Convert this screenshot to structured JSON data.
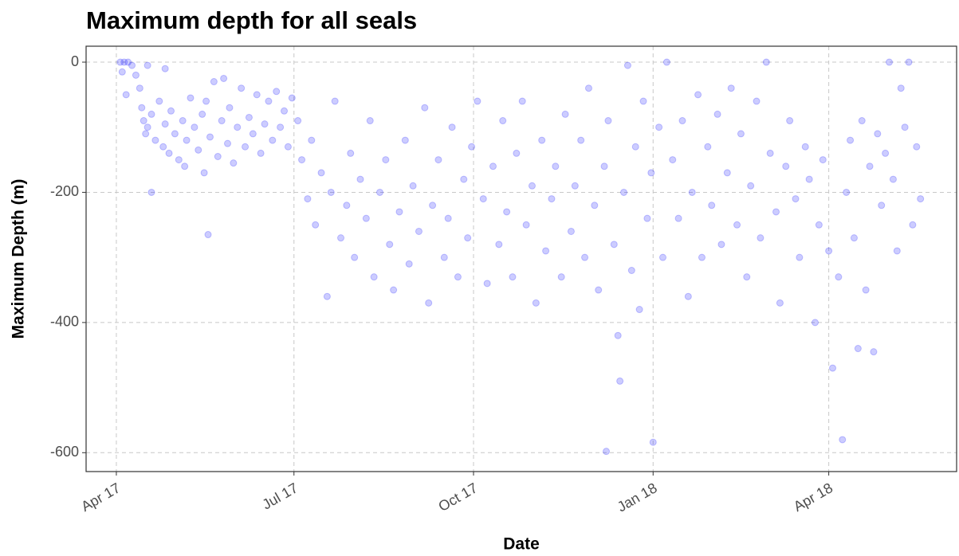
{
  "chart_data": {
    "type": "scatter",
    "title": "Maximum depth for all seals",
    "x_label": "Date",
    "y_label": "Maximum Depth (m)",
    "color": "#0000ff",
    "grid": true,
    "xlim": [
      -15.5,
      430.5
    ],
    "ylim": [
      -629,
      24.5
    ],
    "xticks": [
      {
        "value": 0,
        "label": "Apr 17"
      },
      {
        "value": 91,
        "label": "Jul 17"
      },
      {
        "value": 183,
        "label": "Oct 17"
      },
      {
        "value": 275,
        "label": "Jan 18"
      },
      {
        "value": 365,
        "label": "Apr 18"
      }
    ],
    "yticks": [
      0,
      -200,
      -400,
      -600
    ],
    "x": [
      2,
      4,
      6,
      8,
      10,
      3,
      5,
      12,
      13,
      14,
      15,
      16,
      18,
      20,
      22,
      24,
      25,
      27,
      28,
      30,
      32,
      34,
      35,
      36,
      38,
      40,
      42,
      44,
      45,
      46,
      48,
      50,
      52,
      54,
      55,
      57,
      58,
      60,
      62,
      64,
      66,
      68,
      70,
      72,
      74,
      76,
      78,
      80,
      82,
      84,
      86,
      88,
      90,
      18,
      47,
      16,
      25,
      93,
      95,
      98,
      100,
      102,
      105,
      108,
      110,
      112,
      115,
      118,
      120,
      122,
      125,
      128,
      130,
      132,
      135,
      138,
      140,
      142,
      145,
      148,
      150,
      152,
      155,
      158,
      160,
      162,
      165,
      168,
      170,
      172,
      175,
      178,
      180,
      182,
      185,
      188,
      190,
      193,
      196,
      198,
      200,
      203,
      205,
      208,
      210,
      213,
      215,
      218,
      220,
      223,
      225,
      228,
      230,
      233,
      235,
      238,
      240,
      242,
      245,
      247,
      250,
      252,
      255,
      257,
      258,
      260,
      262,
      264,
      266,
      268,
      270,
      272,
      274,
      251,
      275,
      278,
      280,
      282,
      285,
      288,
      290,
      293,
      295,
      298,
      300,
      303,
      305,
      308,
      310,
      313,
      315,
      318,
      320,
      323,
      325,
      328,
      330,
      333,
      335,
      338,
      340,
      343,
      345,
      348,
      350,
      353,
      355,
      358,
      360,
      362,
      365,
      367,
      370,
      372,
      374,
      376,
      378,
      380,
      382,
      384,
      386,
      388,
      390,
      392,
      394,
      396,
      398,
      400,
      402,
      404,
      406,
      408,
      410,
      412
    ],
    "values": [
      0,
      0,
      0,
      -5,
      -20,
      -15,
      -50,
      -40,
      -70,
      -90,
      -110,
      -100,
      -80,
      -120,
      -60,
      -130,
      -95,
      -140,
      -75,
      -110,
      -150,
      -90,
      -160,
      -120,
      -55,
      -100,
      -135,
      -80,
      -170,
      -60,
      -115,
      -30,
      -145,
      -90,
      -25,
      -125,
      -70,
      -155,
      -100,
      -40,
      -130,
      -85,
      -110,
      -50,
      -140,
      -95,
      -60,
      -120,
      -45,
      -100,
      -75,
      -130,
      -55,
      -200,
      -265,
      -5,
      -10,
      -90,
      -150,
      -210,
      -120,
      -250,
      -170,
      -360,
      -200,
      -60,
      -270,
      -220,
      -140,
      -300,
      -180,
      -240,
      -90,
      -330,
      -200,
      -150,
      -280,
      -350,
      -230,
      -120,
      -310,
      -190,
      -260,
      -70,
      -370,
      -220,
      -150,
      -300,
      -240,
      -100,
      -330,
      -180,
      -270,
      -130,
      -60,
      -210,
      -340,
      -160,
      -280,
      -90,
      -230,
      -330,
      -140,
      -60,
      -250,
      -190,
      -370,
      -120,
      -290,
      -210,
      -160,
      -330,
      -80,
      -260,
      -190,
      -120,
      -300,
      -40,
      -220,
      -350,
      -160,
      -90,
      -280,
      -420,
      -490,
      -200,
      -5,
      -320,
      -130,
      -380,
      -60,
      -240,
      -170,
      -598,
      -584,
      -100,
      -300,
      0,
      -150,
      -240,
      -90,
      -360,
      -200,
      -50,
      -300,
      -130,
      -220,
      -80,
      -280,
      -170,
      -40,
      -250,
      -110,
      -330,
      -190,
      -60,
      -270,
      0,
      -140,
      -230,
      -370,
      -160,
      -90,
      -210,
      -300,
      -130,
      -180,
      -400,
      -250,
      -150,
      -290,
      -470,
      -330,
      -580,
      -200,
      -120,
      -270,
      -440,
      -90,
      -350,
      -160,
      -445,
      -110,
      -220,
      -140,
      0,
      -180,
      -290,
      -40,
      -100,
      0,
      -250,
      -130,
      -210
    ]
  }
}
